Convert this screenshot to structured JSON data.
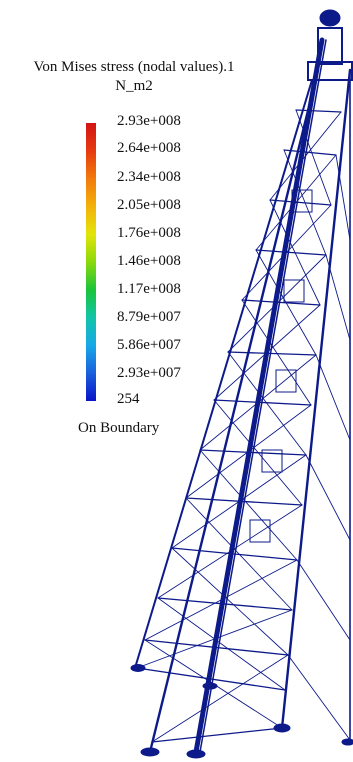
{
  "legend": {
    "title": "Von Mises stress (nodal values).1",
    "unit": "N_m2",
    "ticks": [
      "2.93e+008",
      "2.64e+008",
      "2.34e+008",
      "2.05e+008",
      "1.76e+008",
      "1.46e+008",
      "1.17e+008",
      "8.79e+007",
      "5.86e+007",
      "2.93e+007",
      "254"
    ],
    "footer": "On Boundary",
    "gradient_colors": [
      "#d21414",
      "#e63a10",
      "#f27a0c",
      "#f3b10a",
      "#e3e40a",
      "#8bd90b",
      "#1ac43a",
      "#12c4a8",
      "#17a8e8",
      "#1a5fdc",
      "#0a14c8"
    ]
  },
  "model": {
    "mesh_color": "#0d1a8a"
  }
}
